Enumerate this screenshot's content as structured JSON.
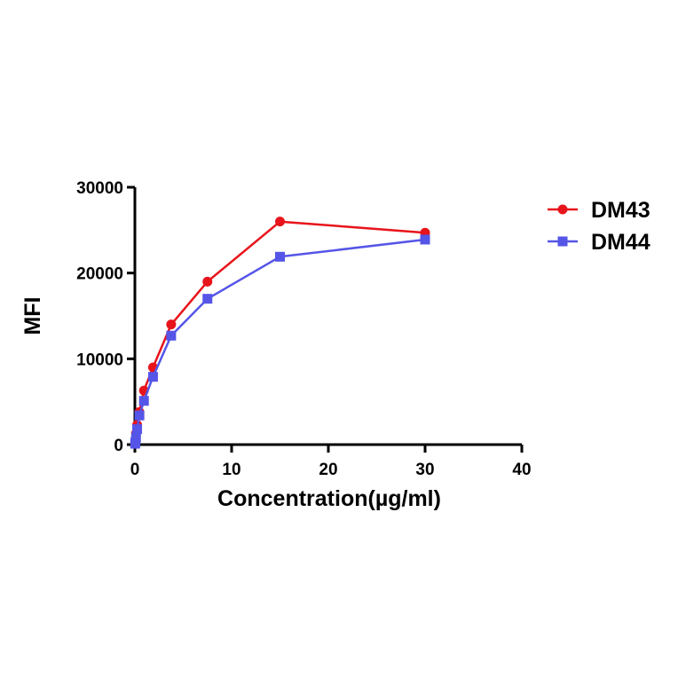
{
  "chart_data": {
    "type": "line",
    "title": "",
    "xlabel": "Concentration(µg/ml)",
    "ylabel": "MFI",
    "xlim": [
      0,
      40
    ],
    "ylim": [
      0,
      30000
    ],
    "xticks": [
      0,
      10,
      20,
      30,
      40
    ],
    "yticks": [
      0,
      10000,
      20000,
      30000
    ],
    "grid": false,
    "legend_position": "right",
    "series": [
      {
        "name": "DM43",
        "color": "#e8141b",
        "marker": "circle",
        "x": [
          0.029,
          0.059,
          0.117,
          0.234,
          0.469,
          0.938,
          1.875,
          3.75,
          7.5,
          15,
          30
        ],
        "y": [
          150,
          500,
          1300,
          2300,
          3800,
          6300,
          9000,
          14000,
          19000,
          26000,
          24700
        ]
      },
      {
        "name": "DM44",
        "color": "#5555e8",
        "marker": "square",
        "x": [
          0.029,
          0.059,
          0.117,
          0.234,
          0.469,
          0.938,
          1.875,
          3.75,
          7.5,
          15,
          30
        ],
        "y": [
          100,
          300,
          800,
          1800,
          3400,
          5100,
          7900,
          12700,
          17000,
          21900,
          23900
        ]
      }
    ]
  }
}
